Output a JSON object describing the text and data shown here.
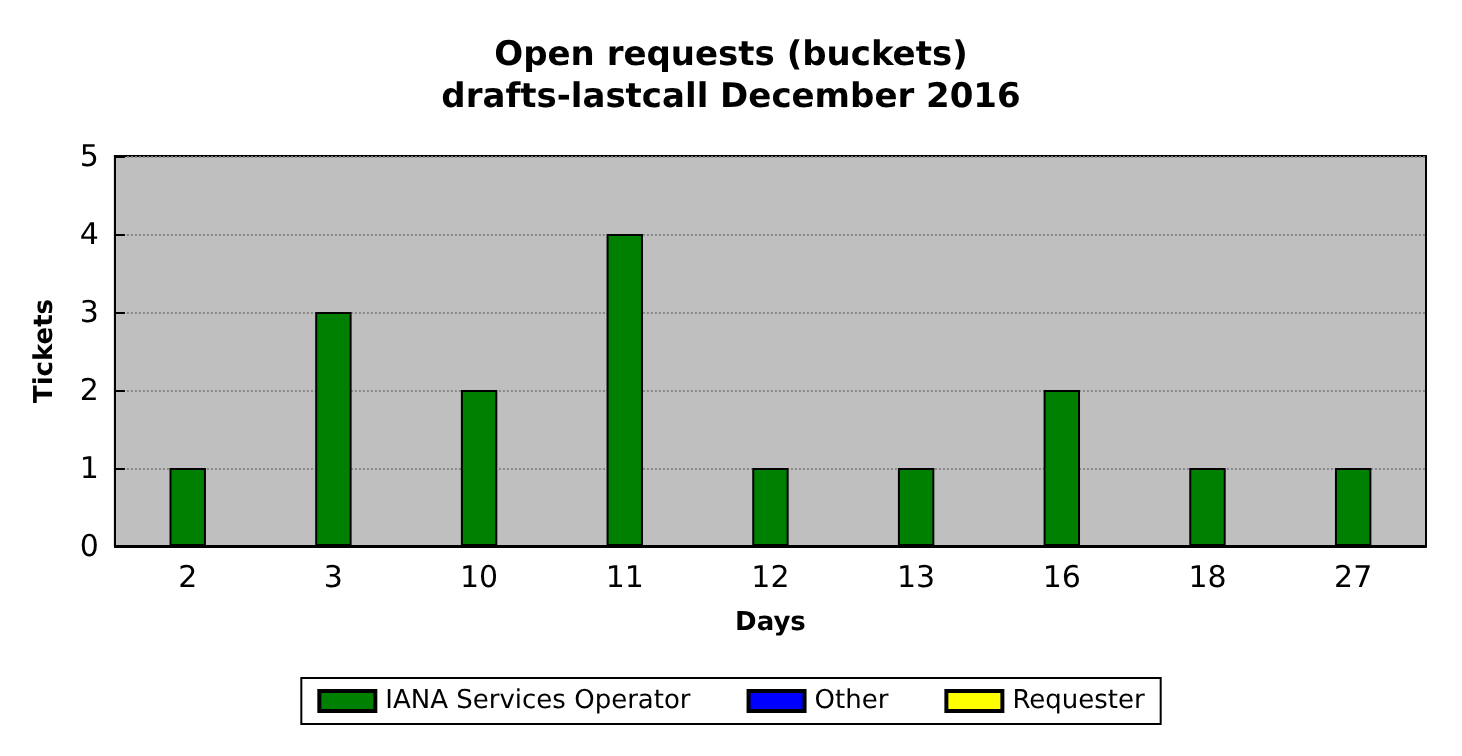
{
  "chart_data": {
    "type": "bar",
    "title": "Open requests (buckets)",
    "subtitle": "drafts-lastcall December 2016",
    "xlabel": "Days",
    "ylabel": "Tickets",
    "categories": [
      "2",
      "3",
      "10",
      "11",
      "12",
      "13",
      "16",
      "18",
      "27"
    ],
    "stacked": true,
    "series": [
      {
        "name": "IANA Services Operator",
        "color": "#008000",
        "values": [
          1,
          3,
          2,
          4,
          1,
          1,
          2,
          1,
          1
        ]
      },
      {
        "name": "Other",
        "color": "#0000ff",
        "values": [
          0,
          0,
          0,
          0,
          0,
          0,
          0,
          0,
          0
        ]
      },
      {
        "name": "Requester",
        "color": "#ffff00",
        "values": [
          0,
          0,
          0,
          0,
          0,
          0,
          0,
          0,
          0
        ]
      }
    ],
    "ylim": [
      0,
      5
    ],
    "yticks": [
      0,
      1,
      2,
      3,
      4,
      5
    ],
    "grid": "y",
    "legend": "bottom"
  }
}
